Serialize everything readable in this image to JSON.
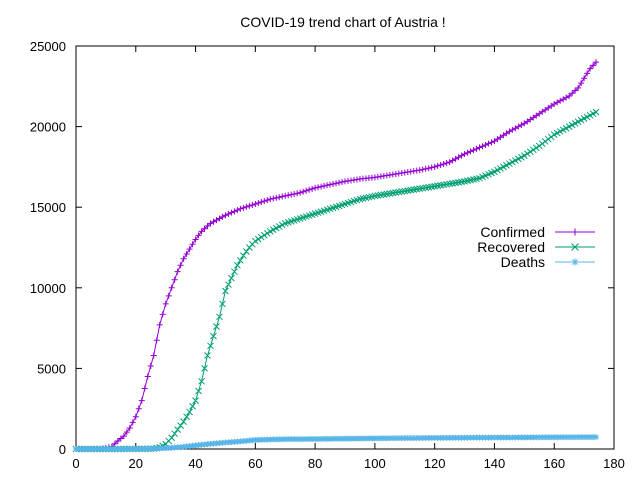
{
  "chart_data": {
    "type": "line",
    "title": "COVID-19 trend chart of Austria !",
    "xlabel": "",
    "ylabel": "",
    "xlim": [
      0,
      180
    ],
    "ylim": [
      0,
      25000
    ],
    "x_ticks": [
      0,
      20,
      40,
      60,
      80,
      100,
      120,
      140,
      160,
      180
    ],
    "y_ticks": [
      0,
      5000,
      10000,
      15000,
      20000,
      25000
    ],
    "grid": false,
    "legend_position": "right",
    "series": [
      {
        "name": "Confirmed",
        "color": "#9400d3",
        "marker": "plus",
        "points": [
          [
            0,
            0
          ],
          [
            5,
            5
          ],
          [
            8,
            10
          ],
          [
            10,
            60
          ],
          [
            12,
            150
          ],
          [
            14,
            500
          ],
          [
            16,
            800
          ],
          [
            18,
            1300
          ],
          [
            20,
            2000
          ],
          [
            22,
            3000
          ],
          [
            24,
            4500
          ],
          [
            26,
            5800
          ],
          [
            28,
            7700
          ],
          [
            30,
            9000
          ],
          [
            32,
            10000
          ],
          [
            34,
            11000
          ],
          [
            36,
            11800
          ],
          [
            38,
            12400
          ],
          [
            40,
            13000
          ],
          [
            42,
            13500
          ],
          [
            45,
            14000
          ],
          [
            50,
            14500
          ],
          [
            55,
            14900
          ],
          [
            60,
            15200
          ],
          [
            65,
            15500
          ],
          [
            70,
            15700
          ],
          [
            75,
            15900
          ],
          [
            80,
            16200
          ],
          [
            85,
            16400
          ],
          [
            90,
            16600
          ],
          [
            95,
            16750
          ],
          [
            100,
            16850
          ],
          [
            105,
            17000
          ],
          [
            110,
            17150
          ],
          [
            115,
            17300
          ],
          [
            120,
            17500
          ],
          [
            125,
            17800
          ],
          [
            130,
            18300
          ],
          [
            135,
            18700
          ],
          [
            140,
            19100
          ],
          [
            145,
            19700
          ],
          [
            150,
            20200
          ],
          [
            155,
            20800
          ],
          [
            160,
            21400
          ],
          [
            165,
            21900
          ],
          [
            168,
            22400
          ],
          [
            170,
            23000
          ],
          [
            172,
            23600
          ],
          [
            174,
            24000
          ]
        ]
      },
      {
        "name": "Recovered",
        "color": "#009e73",
        "marker": "x",
        "points": [
          [
            0,
            0
          ],
          [
            10,
            0
          ],
          [
            20,
            5
          ],
          [
            26,
            20
          ],
          [
            28,
            100
          ],
          [
            30,
            300
          ],
          [
            32,
            700
          ],
          [
            34,
            1200
          ],
          [
            36,
            1700
          ],
          [
            38,
            2300
          ],
          [
            40,
            3000
          ],
          [
            42,
            4200
          ],
          [
            44,
            5800
          ],
          [
            46,
            7000
          ],
          [
            48,
            8200
          ],
          [
            50,
            9800
          ],
          [
            52,
            10600
          ],
          [
            54,
            11400
          ],
          [
            56,
            12000
          ],
          [
            58,
            12500
          ],
          [
            60,
            12900
          ],
          [
            65,
            13500
          ],
          [
            70,
            14000
          ],
          [
            75,
            14300
          ],
          [
            80,
            14600
          ],
          [
            85,
            14900
          ],
          [
            90,
            15200
          ],
          [
            95,
            15500
          ],
          [
            100,
            15700
          ],
          [
            105,
            15850
          ],
          [
            110,
            16000
          ],
          [
            115,
            16150
          ],
          [
            120,
            16300
          ],
          [
            125,
            16450
          ],
          [
            130,
            16600
          ],
          [
            135,
            16800
          ],
          [
            140,
            17200
          ],
          [
            145,
            17700
          ],
          [
            150,
            18200
          ],
          [
            155,
            18800
          ],
          [
            160,
            19500
          ],
          [
            165,
            20000
          ],
          [
            170,
            20500
          ],
          [
            174,
            20900
          ]
        ]
      },
      {
        "name": "Deaths",
        "color": "#56b4e9",
        "marker": "star",
        "points": [
          [
            0,
            0
          ],
          [
            20,
            0
          ],
          [
            30,
            50
          ],
          [
            35,
            120
          ],
          [
            40,
            220
          ],
          [
            45,
            320
          ],
          [
            50,
            400
          ],
          [
            55,
            470
          ],
          [
            60,
            560
          ],
          [
            65,
            590
          ],
          [
            70,
            610
          ],
          [
            80,
            620
          ],
          [
            90,
            640
          ],
          [
            100,
            660
          ],
          [
            110,
            680
          ],
          [
            120,
            690
          ],
          [
            130,
            700
          ],
          [
            140,
            710
          ],
          [
            150,
            720
          ],
          [
            160,
            730
          ],
          [
            170,
            735
          ],
          [
            174,
            740
          ]
        ]
      }
    ]
  }
}
